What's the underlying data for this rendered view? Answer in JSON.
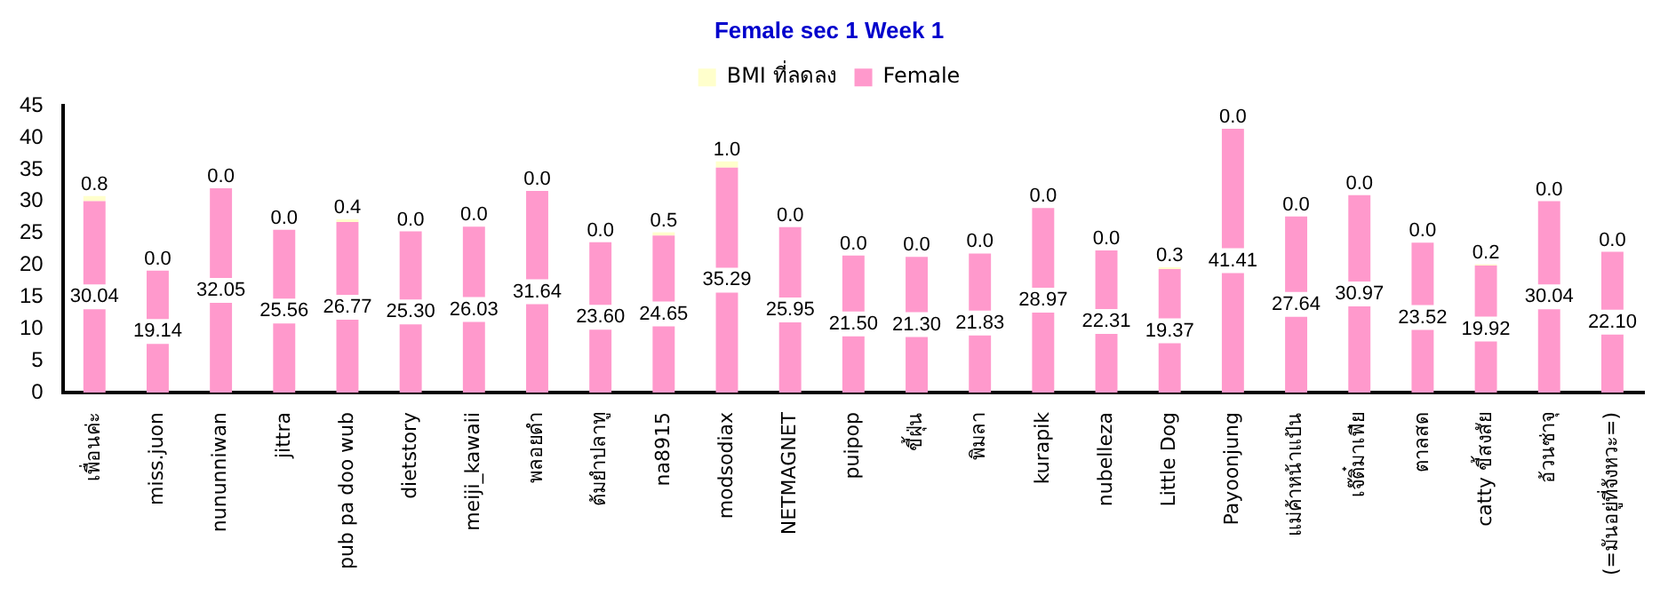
{
  "chart_data": {
    "type": "bar",
    "title": "Female sec 1 Week 1",
    "stacked": true,
    "legend": "top",
    "grid": false,
    "ylim": [
      0,
      45
    ],
    "yticks": [
      0,
      5,
      10,
      15,
      20,
      25,
      30,
      35,
      40,
      45
    ],
    "categories": [
      "เพื่อนค่ะ",
      "miss.juon",
      "nununniwan",
      "jittra",
      "pub pa doo wub",
      "dietstory",
      "meiji_kawaii",
      "พลอยดำ",
      "ต้มยำปลาทู",
      "na8915",
      "modsodiax",
      "NETMAGNET",
      "puipop",
      "ขี้ฝุ่น",
      "พิมลา",
      "kurapik",
      "nubelleza",
      "Little Dog",
      "Payoonjung",
      "แม่ค้าหน้าแป้น",
      "เจ๊ติ๋มาเฟีย",
      "ตาลสด",
      "catty ขี้สงสัย",
      "อ้วนซ่าจุ",
      "(=มันอยู่ที่จังหวะ=)"
    ],
    "series": [
      {
        "name": "Female",
        "color": "#ff99cc",
        "values": [
          30.04,
          19.14,
          32.05,
          25.56,
          26.77,
          25.3,
          26.03,
          31.64,
          23.6,
          24.65,
          35.29,
          25.95,
          21.5,
          21.3,
          21.83,
          28.97,
          22.31,
          19.37,
          41.41,
          27.64,
          30.97,
          23.52,
          19.92,
          30.04,
          22.1
        ],
        "value_labels": [
          "30.04",
          "19.14",
          "32.05",
          "25.56",
          "26.77",
          "25.30",
          "26.03",
          "31.64",
          "23.60",
          "24.65",
          "35.29",
          "25.95",
          "21.50",
          "21.30",
          "21.83",
          "28.97",
          "22.31",
          "19.37",
          "41.41",
          "27.64",
          "30.97",
          "23.52",
          "19.92",
          "30.04",
          "22.10"
        ]
      },
      {
        "name": "BMI ที่ลดลง",
        "color": "#ffffcc",
        "values": [
          0.8,
          0,
          0,
          0,
          0.4,
          0,
          0,
          0,
          0,
          0.5,
          1.0,
          0,
          0,
          0,
          0,
          0,
          0,
          0.3,
          0,
          0,
          0,
          0,
          0.2,
          0,
          0
        ],
        "value_labels": [
          "0.8",
          "0.0",
          "0.0",
          "0.0",
          "0.4",
          "0.0",
          "0.0",
          "0.0",
          "0.0",
          "0.5",
          "1.0",
          "0.0",
          "0.0",
          "0.0",
          "0.0",
          "0.0",
          "0.0",
          "0.3",
          "0.0",
          "0.0",
          "0.0",
          "0.0",
          "0.2",
          "0.0",
          "0.0"
        ]
      }
    ]
  }
}
